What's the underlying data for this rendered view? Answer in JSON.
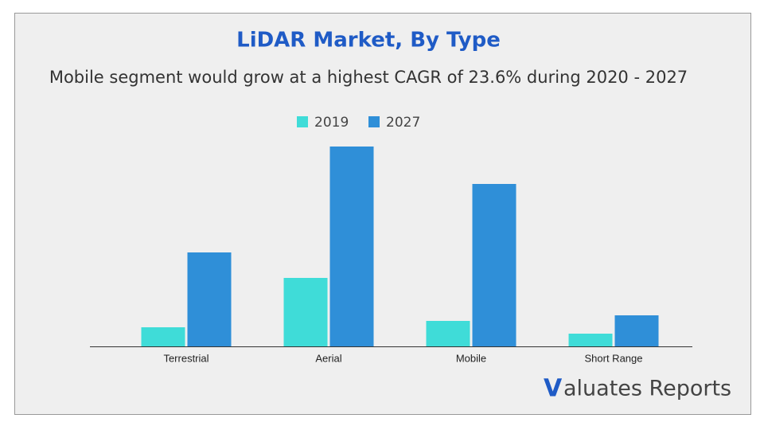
{
  "chart_data": {
    "type": "bar",
    "title": "LiDAR Market, By Type",
    "subtitle": "Mobile segment would grow at a highest CAGR of 23.6% during 2020 - 2027",
    "categories": [
      "Terrestrial",
      "Aerial",
      "Mobile",
      "Short Range"
    ],
    "series": [
      {
        "name": "2019",
        "color": "#3fdcd8",
        "values": [
          24,
          86,
          32,
          16
        ]
      },
      {
        "name": "2027",
        "color": "#2f8fd8",
        "values": [
          118,
          251,
          204,
          39
        ]
      }
    ],
    "ylim": [
      0,
      251
    ],
    "legend": "top"
  },
  "logo": {
    "mark": "V",
    "text": "aluates Reports"
  }
}
